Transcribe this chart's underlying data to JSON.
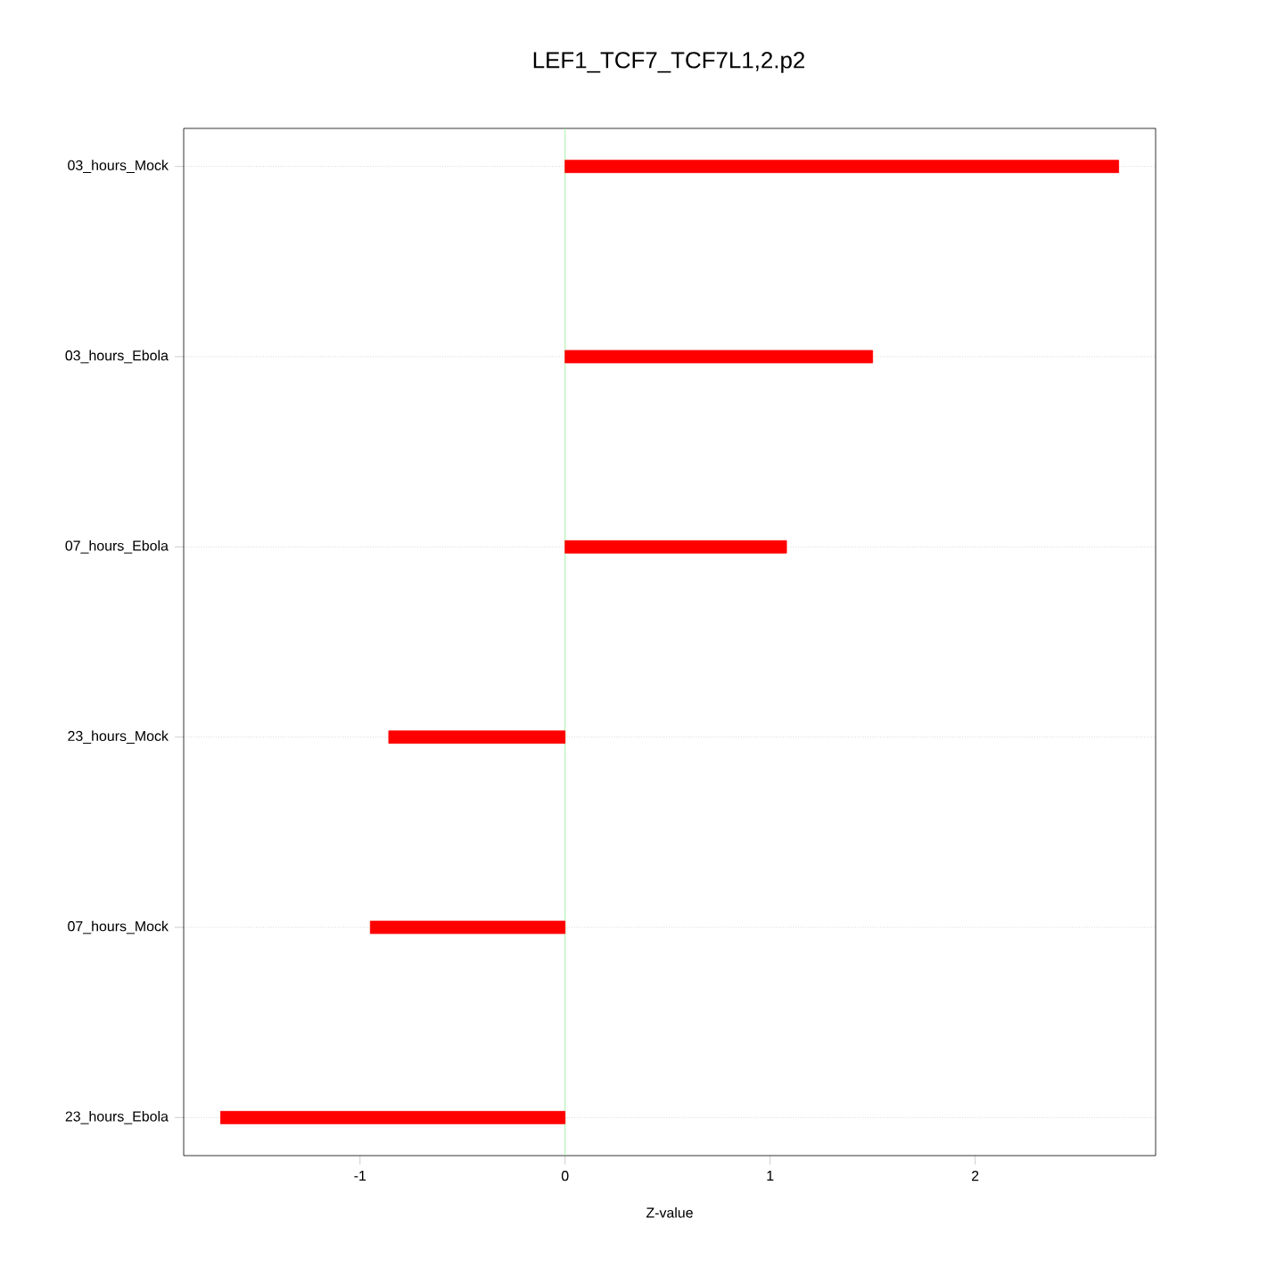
{
  "chart_data": {
    "type": "bar",
    "orientation": "horizontal",
    "title": "LEF1_TCF7_TCF7L1,2.p2",
    "xlabel": "Z-value",
    "categories": [
      "03_hours_Mock",
      "03_hours_Ebola",
      "07_hours_Ebola",
      "23_hours_Mock",
      "07_hours_Mock",
      "23_hours_Ebola"
    ],
    "values": [
      2.7,
      1.5,
      1.08,
      -0.86,
      -0.95,
      -1.68
    ],
    "color": "#ff0000",
    "xlim": [
      -1.86,
      2.88
    ],
    "xticks": [
      -1,
      0,
      1,
      2
    ],
    "grid": "y",
    "ref_lines": [
      {
        "axis": "x",
        "value": 0,
        "color": "#90ee90"
      }
    ]
  }
}
